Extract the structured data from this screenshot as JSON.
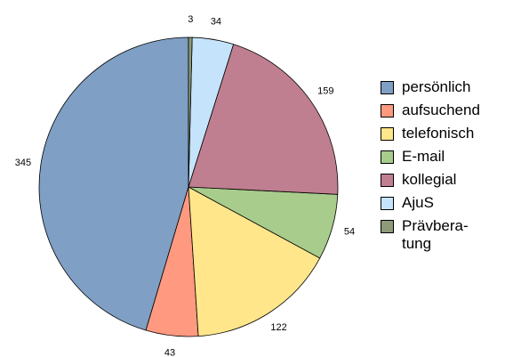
{
  "chart_data": {
    "type": "pie",
    "categories": [
      "persönlich",
      "aufsuchend",
      "telefonisch",
      "E-mail",
      "kollegial",
      "AjuS",
      "Prävbera-tung"
    ],
    "values": [
      345,
      43,
      122,
      54,
      159,
      34,
      3
    ],
    "colors": [
      "#7f9fc4",
      "#ff9980",
      "#ffe68a",
      "#a8cc8c",
      "#c07f90",
      "#c5e4fb",
      "#8e9a78"
    ],
    "legend": "right"
  }
}
